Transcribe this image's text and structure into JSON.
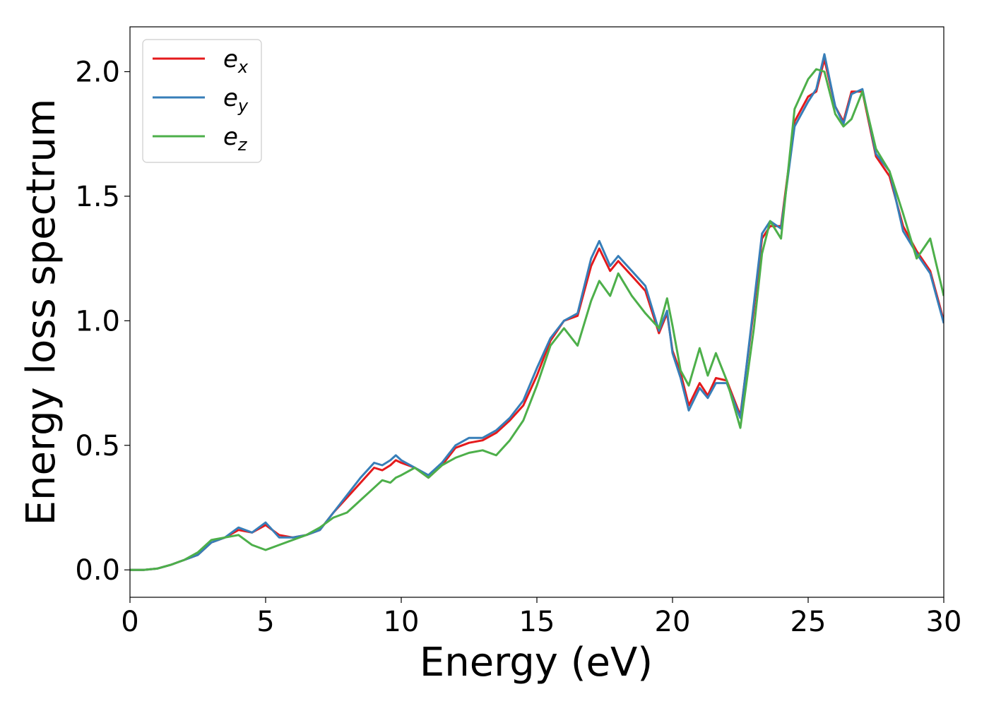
{
  "chart_data": {
    "type": "line",
    "xlabel": "Energy (eV)",
    "ylabel": "Energy loss spectrum",
    "xlim": [
      0,
      30
    ],
    "ylim": [
      -0.11,
      2.18
    ],
    "xticks": [
      0,
      5,
      10,
      15,
      20,
      25,
      30
    ],
    "xtick_labels": [
      "0",
      "5",
      "10",
      "15",
      "20",
      "25",
      "30"
    ],
    "yticks": [
      0.0,
      0.5,
      1.0,
      1.5,
      2.0
    ],
    "ytick_labels": [
      "0.0",
      "0.5",
      "1.0",
      "1.5",
      "2.0"
    ],
    "grid": false,
    "legend_position": "top-left",
    "series": [
      {
        "name": "e",
        "subscript": "x",
        "color": "#e41a1c",
        "x": [
          0,
          0.5,
          1,
          1.5,
          2,
          2.5,
          3,
          3.5,
          4,
          4.5,
          5,
          5.5,
          6,
          6.5,
          7,
          7.5,
          8,
          8.5,
          9,
          9.3,
          9.6,
          9.8,
          10,
          10.5,
          11,
          11.5,
          12,
          12.5,
          13,
          13.5,
          14,
          14.5,
          15,
          15.5,
          16,
          16.5,
          17,
          17.3,
          17.7,
          18,
          18.5,
          19,
          19.5,
          19.8,
          20,
          20.3,
          20.6,
          21,
          21.3,
          21.6,
          22,
          22.5,
          23,
          23.3,
          23.6,
          24,
          24.5,
          25,
          25.3,
          25.6,
          26,
          26.3,
          26.6,
          27,
          27.5,
          28,
          28.5,
          29,
          29.5,
          30
        ],
        "values": [
          0,
          0,
          0.005,
          0.02,
          0.04,
          0.06,
          0.11,
          0.13,
          0.16,
          0.15,
          0.18,
          0.14,
          0.13,
          0.14,
          0.16,
          0.23,
          0.29,
          0.35,
          0.41,
          0.4,
          0.42,
          0.44,
          0.43,
          0.41,
          0.37,
          0.42,
          0.49,
          0.51,
          0.52,
          0.55,
          0.6,
          0.66,
          0.78,
          0.92,
          1.0,
          1.02,
          1.22,
          1.29,
          1.2,
          1.24,
          1.18,
          1.12,
          0.95,
          1.03,
          0.88,
          0.79,
          0.66,
          0.75,
          0.7,
          0.77,
          0.76,
          0.62,
          1.05,
          1.33,
          1.38,
          1.38,
          1.8,
          1.9,
          1.92,
          2.05,
          1.86,
          1.8,
          1.92,
          1.92,
          1.66,
          1.58,
          1.38,
          1.28,
          1.2,
          1.0
        ]
      },
      {
        "name": "e",
        "subscript": "y",
        "color": "#377eb8",
        "x": [
          0,
          0.5,
          1,
          1.5,
          2,
          2.5,
          3,
          3.5,
          4,
          4.5,
          5,
          5.5,
          6,
          6.5,
          7,
          7.5,
          8,
          8.5,
          9,
          9.3,
          9.6,
          9.8,
          10,
          10.5,
          11,
          11.5,
          12,
          12.5,
          13,
          13.5,
          14,
          14.5,
          15,
          15.5,
          16,
          16.5,
          17,
          17.3,
          17.7,
          18,
          18.5,
          19,
          19.5,
          19.8,
          20,
          20.3,
          20.6,
          21,
          21.3,
          21.6,
          22,
          22.5,
          23,
          23.3,
          23.6,
          24,
          24.5,
          25,
          25.3,
          25.6,
          26,
          26.3,
          26.6,
          27,
          27.5,
          28,
          28.5,
          29,
          29.5,
          30
        ],
        "values": [
          0,
          0,
          0.005,
          0.02,
          0.04,
          0.06,
          0.11,
          0.13,
          0.17,
          0.15,
          0.19,
          0.13,
          0.13,
          0.14,
          0.16,
          0.23,
          0.3,
          0.37,
          0.43,
          0.42,
          0.44,
          0.46,
          0.44,
          0.41,
          0.38,
          0.43,
          0.5,
          0.53,
          0.53,
          0.56,
          0.61,
          0.68,
          0.81,
          0.93,
          1.0,
          1.03,
          1.25,
          1.32,
          1.22,
          1.26,
          1.2,
          1.14,
          0.96,
          1.04,
          0.87,
          0.77,
          0.64,
          0.73,
          0.69,
          0.75,
          0.75,
          0.61,
          1.07,
          1.35,
          1.4,
          1.37,
          1.78,
          1.88,
          1.93,
          2.07,
          1.86,
          1.79,
          1.91,
          1.93,
          1.67,
          1.6,
          1.36,
          1.27,
          1.19,
          0.99
        ]
      },
      {
        "name": "e",
        "subscript": "z",
        "color": "#4daf4a",
        "x": [
          0,
          0.5,
          1,
          1.5,
          2,
          2.5,
          3,
          3.5,
          4,
          4.5,
          5,
          5.5,
          6,
          6.5,
          7,
          7.5,
          8,
          8.5,
          9,
          9.3,
          9.6,
          9.8,
          10,
          10.5,
          11,
          11.5,
          12,
          12.5,
          13,
          13.5,
          14,
          14.5,
          15,
          15.5,
          16,
          16.5,
          17,
          17.3,
          17.7,
          18,
          18.5,
          19,
          19.5,
          19.8,
          20,
          20.3,
          20.6,
          21,
          21.3,
          21.6,
          22,
          22.5,
          23,
          23.3,
          23.6,
          24,
          24.5,
          25,
          25.3,
          25.6,
          26,
          26.3,
          26.6,
          27,
          27.5,
          28,
          28.5,
          29,
          29.5,
          30
        ],
        "values": [
          0,
          0,
          0.005,
          0.02,
          0.04,
          0.07,
          0.12,
          0.13,
          0.14,
          0.1,
          0.08,
          0.1,
          0.12,
          0.14,
          0.17,
          0.21,
          0.23,
          0.28,
          0.33,
          0.36,
          0.35,
          0.37,
          0.38,
          0.41,
          0.37,
          0.42,
          0.45,
          0.47,
          0.48,
          0.46,
          0.52,
          0.6,
          0.74,
          0.9,
          0.97,
          0.9,
          1.08,
          1.16,
          1.1,
          1.19,
          1.1,
          1.03,
          0.97,
          1.09,
          0.98,
          0.8,
          0.74,
          0.89,
          0.78,
          0.87,
          0.76,
          0.57,
          0.97,
          1.27,
          1.4,
          1.33,
          1.85,
          1.97,
          2.01,
          2.0,
          1.83,
          1.78,
          1.81,
          1.92,
          1.69,
          1.6,
          1.43,
          1.25,
          1.33,
          1.1
        ]
      }
    ]
  }
}
